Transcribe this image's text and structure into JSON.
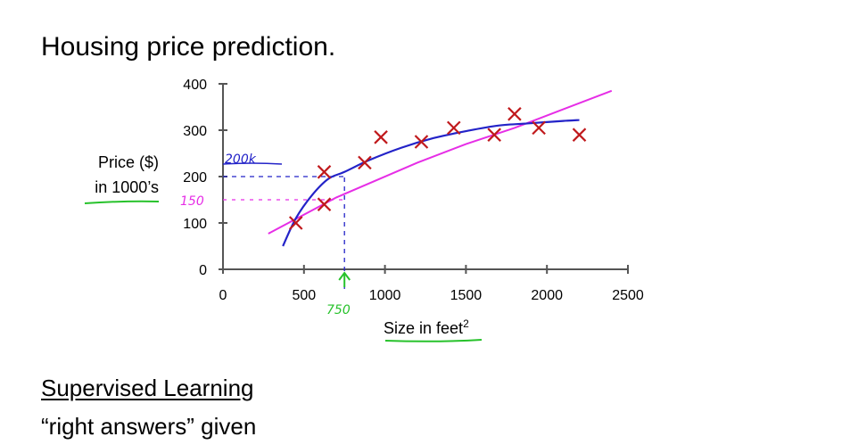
{
  "title": "Housing price prediction.",
  "y_label_line1": "Price ($)",
  "y_label_line2": "in 1000’s",
  "x_label": "Size in feet",
  "x_label_sup": "2",
  "annotation_200k": "200k",
  "annotation_150": "150",
  "annotation_750": "750",
  "section_heading": "Supervised Learning",
  "section_text": "“right answers” given",
  "colors": {
    "points": "#c0191c",
    "curve": "#2323c8",
    "line": "#e62ee6",
    "highlight": "#27c22b"
  },
  "chart_data": {
    "type": "scatter",
    "x_ticks": [
      0,
      500,
      1000,
      1500,
      2000,
      2500
    ],
    "y_ticks": [
      0,
      100,
      200,
      300,
      400
    ],
    "xlim": [
      0,
      2500
    ],
    "ylim": [
      0,
      400
    ],
    "points": [
      {
        "x": 450,
        "y": 100
      },
      {
        "x": 625,
        "y": 140
      },
      {
        "x": 625,
        "y": 210
      },
      {
        "x": 875,
        "y": 230
      },
      {
        "x": 975,
        "y": 285
      },
      {
        "x": 1225,
        "y": 275
      },
      {
        "x": 1425,
        "y": 305
      },
      {
        "x": 1675,
        "y": 290
      },
      {
        "x": 1800,
        "y": 335
      },
      {
        "x": 1950,
        "y": 305
      },
      {
        "x": 2200,
        "y": 290
      }
    ],
    "curve_fit": [
      {
        "x": 370,
        "y": 50
      },
      {
        "x": 450,
        "y": 110
      },
      {
        "x": 550,
        "y": 160
      },
      {
        "x": 650,
        "y": 195
      },
      {
        "x": 750,
        "y": 210
      },
      {
        "x": 900,
        "y": 235
      },
      {
        "x": 1100,
        "y": 262
      },
      {
        "x": 1300,
        "y": 283
      },
      {
        "x": 1500,
        "y": 298
      },
      {
        "x": 1700,
        "y": 310
      },
      {
        "x": 1900,
        "y": 315
      },
      {
        "x": 2100,
        "y": 320
      },
      {
        "x": 2200,
        "y": 322
      }
    ],
    "line_fit": [
      {
        "x": 280,
        "y": 77
      },
      {
        "x": 700,
        "y": 155
      },
      {
        "x": 1200,
        "y": 230
      },
      {
        "x": 1500,
        "y": 270
      },
      {
        "x": 1800,
        "y": 305
      },
      {
        "x": 2100,
        "y": 345
      },
      {
        "x": 2400,
        "y": 385
      }
    ],
    "guides": {
      "x": 750,
      "y_curve": 200,
      "y_line": 150
    }
  }
}
